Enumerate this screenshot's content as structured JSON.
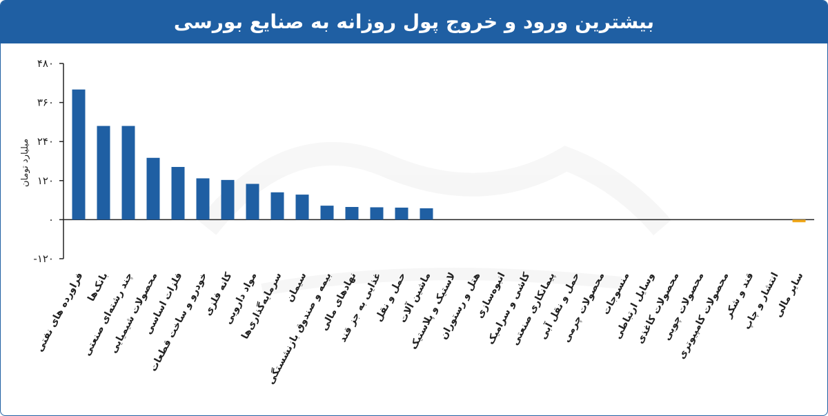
{
  "chart_data": {
    "type": "bar",
    "title": "بیشترین ورود و خروج پول روزانه به صنایع بورسی",
    "ylabel": "میلیارد تومان",
    "ylim": [
      -120,
      480
    ],
    "yticks": [
      480,
      360,
      240,
      120,
      0,
      -120
    ],
    "ytick_labels": [
      "۴۸۰",
      "۳۶۰",
      "۲۴۰",
      "۱۲۰",
      "۰",
      "-۱۲۰"
    ],
    "grid": false,
    "categories": [
      "فراورده های نفتی",
      "بانک‌ها",
      "چند رشته‌ای صنعتی",
      "محصولات شیمیایی",
      "فلزات اساسی",
      "خودرو و ساخت قطعات",
      "کانه فلزی",
      "مواد دارویی",
      "سرمایه‌گذاری‌ها",
      "سیمان",
      "بیمه و صندوق بازنشستگی",
      "نهادهای مالی",
      "غذایی به جز قند",
      "حمل و نقل",
      "ماشین آلات",
      "لاستیک و پلاستیک",
      "هتل و رستوران",
      "انبوه‌سازی",
      "کاشی و سرامیک",
      "پیمانکاری صنعتی",
      "حمل و نقل آبی",
      "محصولات چرمی",
      "منسوجات",
      "وسایل ارتباطی",
      "محصولات کاغذی",
      "محصولات چوبی",
      "محصولات کامپیوتری",
      "قند و شکر",
      "انتشار و چاپ",
      "سایر مالی"
    ],
    "values": [
      400,
      288,
      288,
      190,
      162,
      127,
      122,
      110,
      84,
      77,
      43,
      39,
      38,
      37,
      35,
      0,
      0,
      0,
      0,
      0,
      0,
      0,
      0,
      0,
      0,
      0,
      0,
      0,
      0,
      -8
    ],
    "colors": {
      "positive": "#1f5fa3",
      "negative": "#f0a81c",
      "header": "#1f5fa3"
    }
  }
}
